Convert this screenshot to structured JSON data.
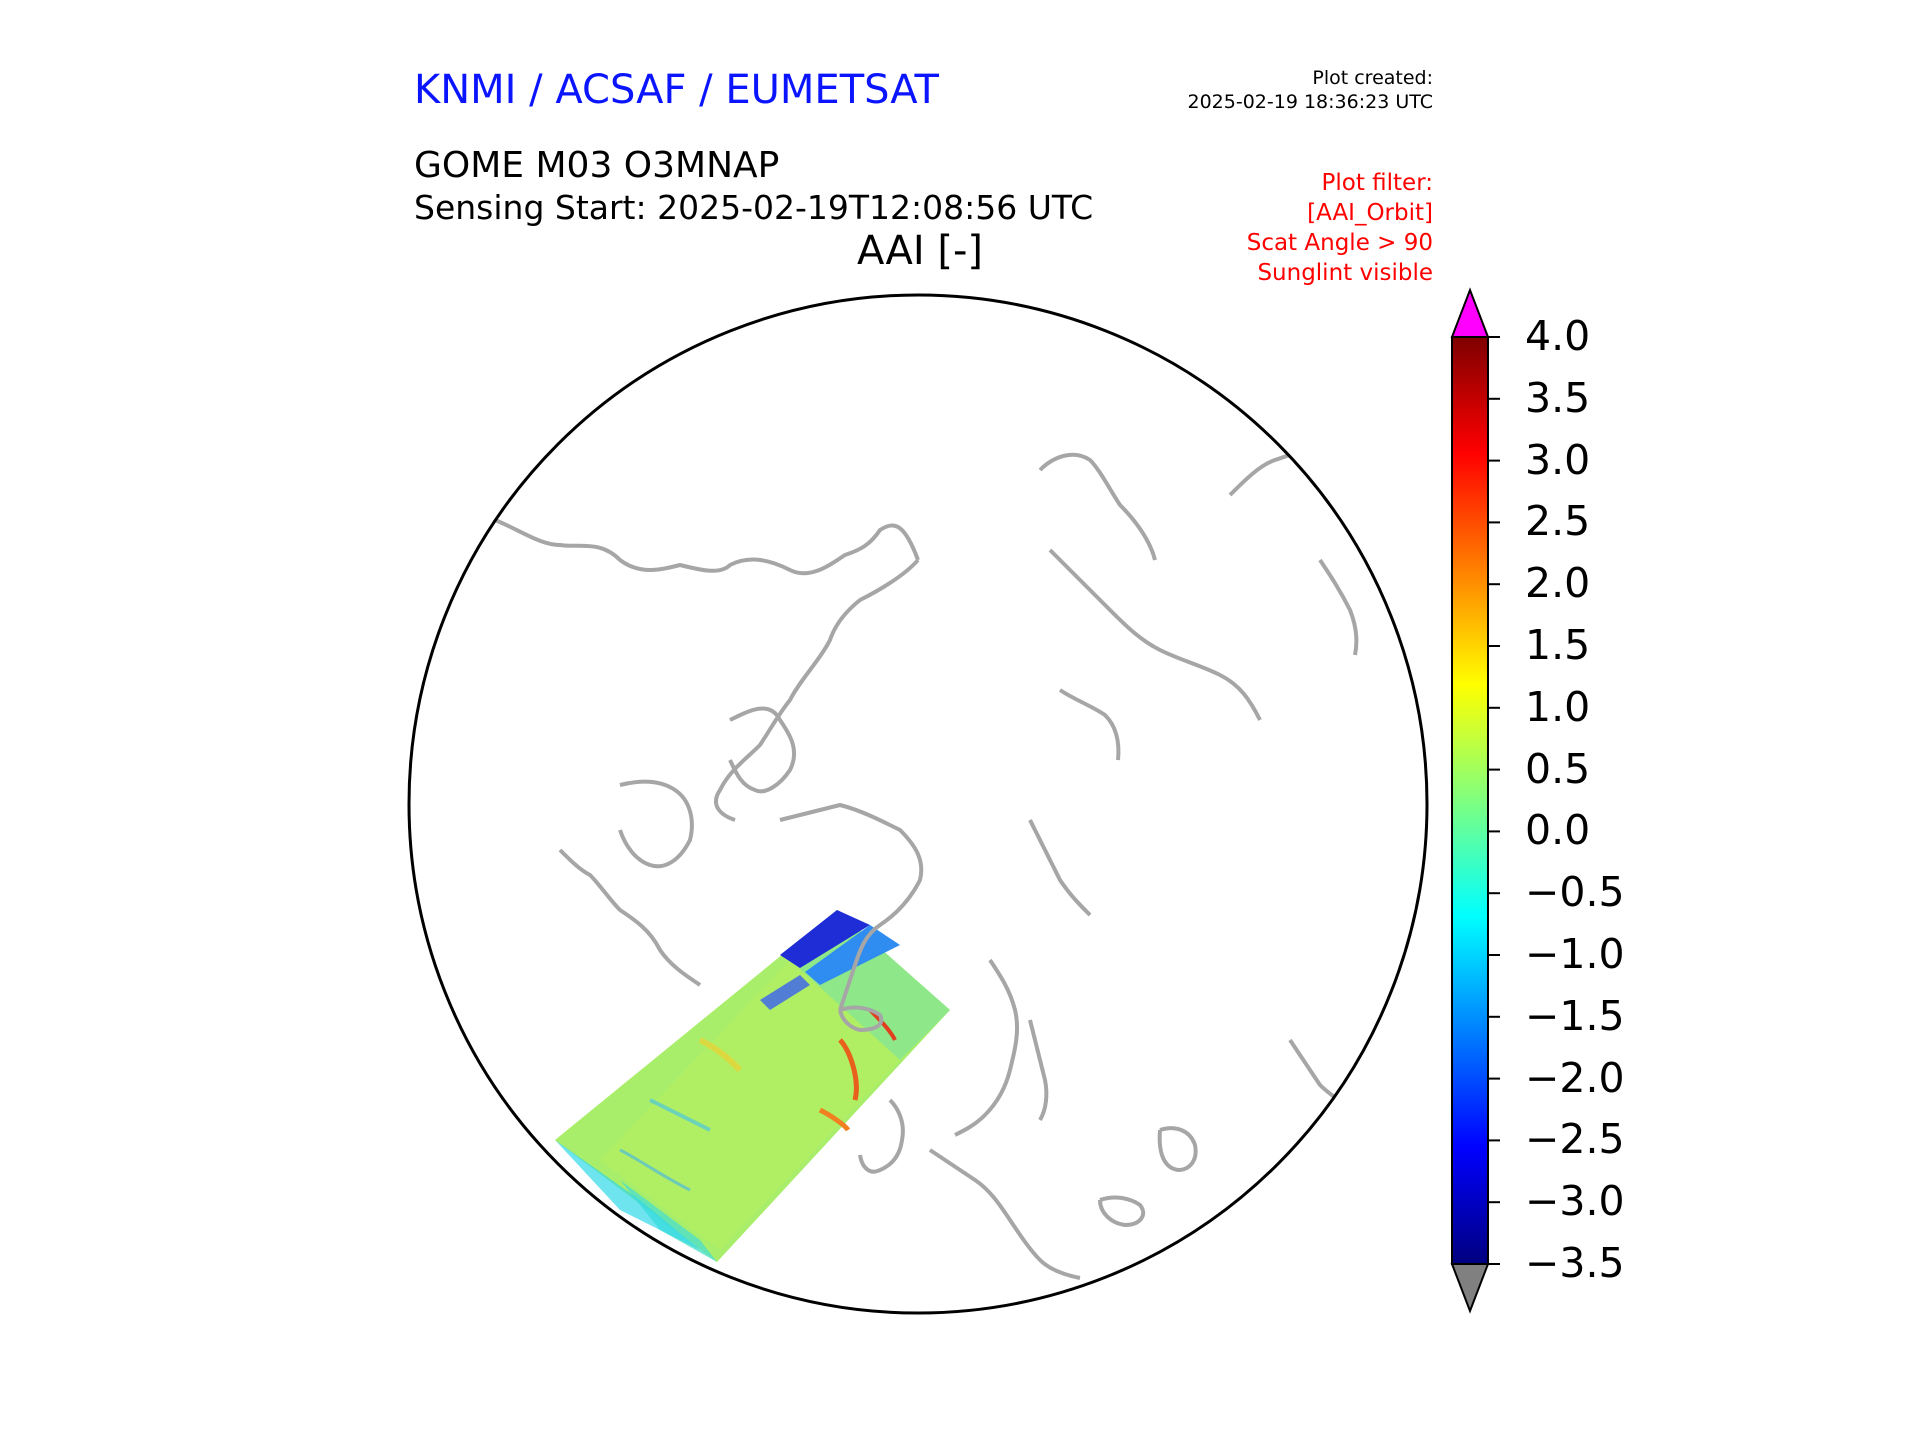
{
  "header": {
    "agency": "KNMI / ACSAF / EUMETSAT",
    "created_label": "Plot created:",
    "created_time": "2025-02-19 18:36:23 UTC",
    "product": "GOME M03 O3MNAP",
    "sensing_start": "Sensing Start: 2025-02-19T12:08:56 UTC",
    "map_title": "AAI [-]"
  },
  "filter": {
    "label": "Plot filter:",
    "name": "[AAI_Orbit]",
    "scat_angle": "Scat Angle > 90",
    "sunglint": "Sunglint visible"
  },
  "map": {
    "projection": "north-polar-stereographic",
    "coastline_color": "#a6a6a6",
    "frame_color": "#000000"
  },
  "colorbar": {
    "min": -3.5,
    "max": 4.0,
    "ticks": [
      "4.0",
      "3.5",
      "3.0",
      "2.5",
      "2.0",
      "1.5",
      "1.0",
      "0.5",
      "0.0",
      "−0.5",
      "−1.0",
      "−1.5",
      "−2.0",
      "−2.5",
      "−3.0",
      "−3.5"
    ],
    "over_color": "#ff00ff",
    "under_color": "#808080",
    "colors": [
      "#00007f",
      "#0000ff",
      "#007fff",
      "#00ffff",
      "#7fff7f",
      "#ffff00",
      "#ff7f00",
      "#ff0000",
      "#7f0000"
    ]
  }
}
